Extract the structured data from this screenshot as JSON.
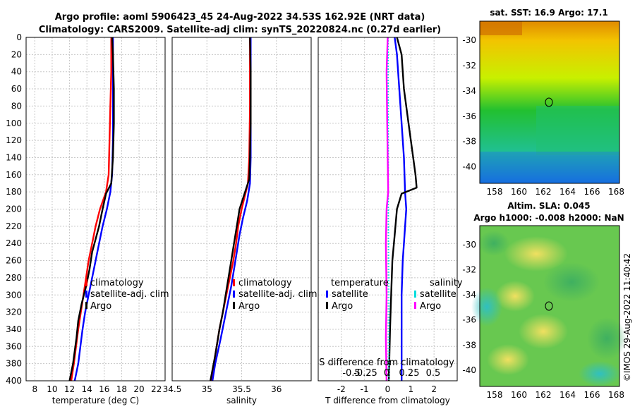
{
  "header": {
    "title_line1": "Argo profile: aoml 5906423_45 24-Aug-2022 34.53S 162.92E (NRT data)",
    "title_line2": "Climatology: CARS2009. Satellite-adj clim: synTS_20220824.nc (0.27d earlier)"
  },
  "depth_axis": {
    "ticks": [
      0,
      20,
      40,
      60,
      80,
      100,
      120,
      140,
      160,
      180,
      200,
      220,
      240,
      260,
      280,
      300,
      320,
      340,
      360,
      380,
      400
    ]
  },
  "chart_data": [
    {
      "id": "temperature",
      "type": "line",
      "xlabel": "temperature (deg C)",
      "ylabel": "",
      "xlim": [
        7,
        23
      ],
      "ylim": [
        400,
        0
      ],
      "xticks": [
        8,
        10,
        12,
        14,
        16,
        18,
        20,
        22
      ],
      "series": [
        {
          "name": "climatology",
          "color": "#ff0000",
          "points": [
            [
              16.8,
              0
            ],
            [
              16.8,
              40
            ],
            [
              16.7,
              80
            ],
            [
              16.6,
              120
            ],
            [
              16.5,
              160
            ],
            [
              16.2,
              180
            ],
            [
              15.5,
              200
            ],
            [
              15.0,
              220
            ],
            [
              14.6,
              240
            ],
            [
              14.2,
              260
            ],
            [
              13.9,
              280
            ],
            [
              13.6,
              300
            ],
            [
              13.3,
              320
            ],
            [
              13.0,
              340
            ],
            [
              12.5,
              380
            ],
            [
              12.2,
              400
            ]
          ]
        },
        {
          "name": "satellite-adj. clim",
          "color": "#0000ff",
          "points": [
            [
              17.0,
              0
            ],
            [
              17.0,
              40
            ],
            [
              17.0,
              80
            ],
            [
              17.0,
              120
            ],
            [
              16.9,
              160
            ],
            [
              16.7,
              180
            ],
            [
              16.3,
              200
            ],
            [
              15.8,
              220
            ],
            [
              15.4,
              240
            ],
            [
              15.0,
              260
            ],
            [
              14.6,
              280
            ],
            [
              14.2,
              300
            ],
            [
              13.8,
              320
            ],
            [
              13.5,
              340
            ],
            [
              13.0,
              380
            ],
            [
              12.6,
              400
            ]
          ]
        },
        {
          "name": "Argo",
          "color": "#000000",
          "points": [
            [
              16.9,
              0
            ],
            [
              17.0,
              20
            ],
            [
              17.1,
              60
            ],
            [
              17.1,
              100
            ],
            [
              17.0,
              140
            ],
            [
              16.8,
              170
            ],
            [
              16.2,
              182
            ],
            [
              15.8,
              200
            ],
            [
              15.4,
              220
            ],
            [
              14.6,
              250
            ],
            [
              14.3,
              270
            ],
            [
              13.9,
              290
            ],
            [
              13.4,
              310
            ],
            [
              13.0,
              330
            ],
            [
              12.8,
              350
            ],
            [
              12.4,
              380
            ],
            [
              12.0,
              400
            ]
          ]
        }
      ],
      "legend": [
        "climatology",
        "satellite-adj. clim",
        "Argo"
      ]
    },
    {
      "id": "salinity",
      "type": "line",
      "xlabel": "salinity",
      "ylabel": "",
      "xlim": [
        34.5,
        36.5
      ],
      "ylim": [
        400,
        0
      ],
      "xticks": [
        34.5,
        35,
        35.5,
        36
      ],
      "xtick_labels": [
        "34.5",
        "35",
        "35.5",
        "36"
      ],
      "series": [
        {
          "name": "climatology",
          "color": "#ff0000",
          "points": [
            [
              35.62,
              0
            ],
            [
              35.62,
              80
            ],
            [
              35.61,
              140
            ],
            [
              35.59,
              170
            ],
            [
              35.5,
              200
            ],
            [
              35.45,
              220
            ],
            [
              35.42,
              240
            ],
            [
              35.38,
              260
            ],
            [
              35.33,
              280
            ],
            [
              35.28,
              300
            ],
            [
              35.23,
              320
            ],
            [
              35.18,
              340
            ],
            [
              35.12,
              370
            ],
            [
              35.07,
              400
            ]
          ]
        },
        {
          "name": "satellite-adj. clim",
          "color": "#0000ff",
          "points": [
            [
              35.63,
              0
            ],
            [
              35.63,
              80
            ],
            [
              35.63,
              140
            ],
            [
              35.62,
              170
            ],
            [
              35.58,
              190
            ],
            [
              35.52,
              210
            ],
            [
              35.47,
              230
            ],
            [
              35.43,
              250
            ],
            [
              35.39,
              270
            ],
            [
              35.35,
              290
            ],
            [
              35.3,
              310
            ],
            [
              35.25,
              330
            ],
            [
              35.2,
              350
            ],
            [
              35.12,
              380
            ],
            [
              35.08,
              400
            ]
          ]
        },
        {
          "name": "Argo",
          "color": "#000000",
          "points": [
            [
              35.62,
              0
            ],
            [
              35.63,
              40
            ],
            [
              35.63,
              100
            ],
            [
              35.62,
              140
            ],
            [
              35.61,
              165
            ],
            [
              35.55,
              180
            ],
            [
              35.47,
              200
            ],
            [
              35.43,
              220
            ],
            [
              35.37,
              250
            ],
            [
              35.33,
              270
            ],
            [
              35.28,
              295
            ],
            [
              35.23,
              320
            ],
            [
              35.18,
              340
            ],
            [
              35.12,
              370
            ],
            [
              35.05,
              400
            ]
          ]
        }
      ],
      "legend": [
        "climatology",
        "satellite-adj. clim",
        "Argo"
      ]
    },
    {
      "id": "difference",
      "type": "line",
      "xlabel": "T difference from climatology",
      "xlabel_top": "S difference from climatology",
      "ylabel": "",
      "xlim": [
        -3,
        3
      ],
      "ylim": [
        400,
        0
      ],
      "xticks": [
        -2,
        -1,
        0,
        1,
        2
      ],
      "xtick_labels": [
        "-2",
        "-1",
        "0",
        "1",
        "2"
      ],
      "s_ticks": [
        "-0.5",
        "-0.25",
        "0",
        "0.25",
        "0.5"
      ],
      "series": [
        {
          "name": "temperature satellite",
          "color": "#0000ff",
          "points": [
            [
              0.3,
              0
            ],
            [
              0.4,
              20
            ],
            [
              0.5,
              60
            ],
            [
              0.6,
              100
            ],
            [
              0.7,
              140
            ],
            [
              0.75,
              180
            ],
            [
              0.8,
              200
            ],
            [
              0.7,
              240
            ],
            [
              0.65,
              260
            ],
            [
              0.6,
              300
            ],
            [
              0.6,
              340
            ],
            [
              0.6,
              400
            ]
          ]
        },
        {
          "name": "temperature Argo",
          "color": "#000000",
          "points": [
            [
              0.4,
              0
            ],
            [
              0.6,
              20
            ],
            [
              0.7,
              60
            ],
            [
              0.9,
              100
            ],
            [
              1.1,
              140
            ],
            [
              1.2,
              160
            ],
            [
              1.25,
              175
            ],
            [
              0.6,
              182
            ],
            [
              0.4,
              200
            ],
            [
              0.3,
              230
            ],
            [
              0.2,
              260
            ],
            [
              0.15,
              300
            ],
            [
              0.1,
              340
            ],
            [
              0.05,
              400
            ]
          ]
        },
        {
          "name": "salinity satellite",
          "color": "#00dddd",
          "points": [
            [
              0.02,
              0
            ],
            [
              0.03,
              100
            ],
            [
              0.03,
              200
            ],
            [
              0.05,
              300
            ],
            [
              0.05,
              400
            ]
          ]
        },
        {
          "name": "salinity Argo",
          "color": "#ff00ff",
          "points": [
            [
              0,
              0
            ],
            [
              -0.05,
              40
            ],
            [
              -0.02,
              100
            ],
            [
              0.02,
              180
            ],
            [
              -0.05,
              200
            ],
            [
              -0.08,
              240
            ],
            [
              -0.05,
              300
            ],
            [
              -0.08,
              350
            ],
            [
              -0.05,
              400
            ]
          ]
        }
      ],
      "legend_left_title": "temperature",
      "legend_left": [
        "satellite",
        "Argo"
      ],
      "legend_right_title": "salinity",
      "legend_right": [
        "satellite",
        "Argo"
      ]
    }
  ],
  "maps": [
    {
      "title": "sat. SST: 16.9 Argo: 17.1",
      "yticks": [
        "-30",
        "-32",
        "-34",
        "-36",
        "-38",
        "-40"
      ],
      "xticks": [
        "158",
        "160",
        "162",
        "164",
        "166",
        "168"
      ]
    },
    {
      "title_line1": "Altim. SLA: 0.045",
      "title_line2": "Argo h1000: -0.008 h2000: NaN",
      "yticks": [
        "-30",
        "-32",
        "-34",
        "-36",
        "-38",
        "-40"
      ],
      "xticks": [
        "158",
        "160",
        "162",
        "164",
        "166",
        "168"
      ]
    }
  ],
  "watermark": "©IMOS 29-Aug-2022 11:40:42"
}
